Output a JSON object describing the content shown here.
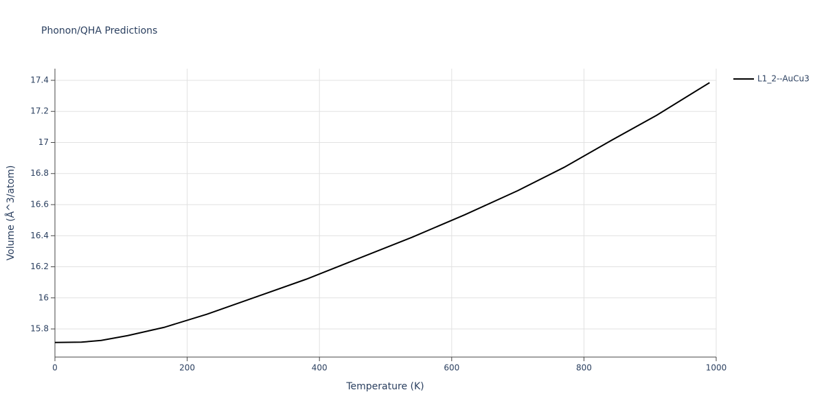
{
  "chart_data": {
    "type": "line",
    "title": "Phonon/QHA Predictions",
    "x_label": "Temperature (K)",
    "y_label": "Volume (Å^3/atom)",
    "x": [
      0,
      40,
      70,
      110,
      165,
      230,
      300,
      380,
      460,
      540,
      620,
      700,
      770,
      840,
      910,
      990
    ],
    "series": [
      {
        "name": "L1_2--AuCu3",
        "color": "#000000",
        "values": [
          15.713,
          15.715,
          15.726,
          15.757,
          15.81,
          15.895,
          16.0,
          16.12,
          16.255,
          16.39,
          16.535,
          16.69,
          16.84,
          17.01,
          17.175,
          17.385
        ]
      }
    ],
    "xlim": [
      0,
      1000
    ],
    "xticks": [
      0,
      200,
      400,
      600,
      800,
      1000
    ],
    "ylim": [
      15.619,
      17.475
    ],
    "yticks": [
      15.8,
      16,
      16.2,
      16.4,
      16.6,
      16.8,
      17,
      17.2,
      17.4
    ],
    "grid": true,
    "legend": "top-right"
  }
}
